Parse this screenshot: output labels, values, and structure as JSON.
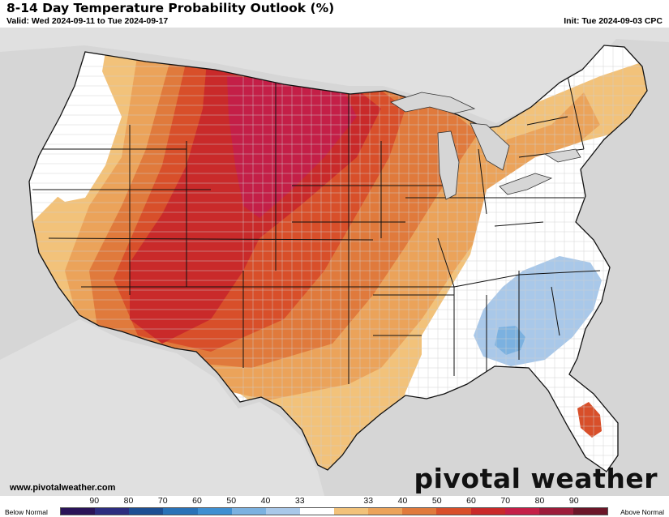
{
  "header": {
    "title": "8-14 Day Temperature Probability Outlook (%)",
    "valid": "Valid: Wed 2024-09-11 to Tue 2024-09-17",
    "init": "Init: Tue 2024-09-03 CPC"
  },
  "footer": {
    "url": "www.pivotalweather.com",
    "brand": "pivotal weather"
  },
  "legend": {
    "left_label": "Below Normal",
    "right_label": "Above Normal",
    "tick_labels": [
      "90",
      "80",
      "70",
      "60",
      "50",
      "40",
      "33",
      "33",
      "40",
      "50",
      "60",
      "70",
      "80",
      "90"
    ],
    "colors": [
      "#2a1458",
      "#2d2d7f",
      "#1d4f93",
      "#2a72b7",
      "#3f8fd1",
      "#7bb1e0",
      "#a9c8e9",
      "#ffffff",
      "#f2c27a",
      "#eba35a",
      "#e07a3c",
      "#d84f2a",
      "#c92a2a",
      "#c41f47",
      "#9c1c3a",
      "#6b1628"
    ]
  },
  "map": {
    "background_color": "#d6d6d6",
    "land_color": "#ffffff",
    "colors": {
      "above_33": "#f2c27a",
      "above_40": "#eba35a",
      "above_50": "#e07a3c",
      "above_60": "#d84f2a",
      "above_70": "#c92a2a",
      "above_80": "#c41f47",
      "below_40": "#a9c8e9",
      "below_50": "#7bb1e0"
    }
  }
}
